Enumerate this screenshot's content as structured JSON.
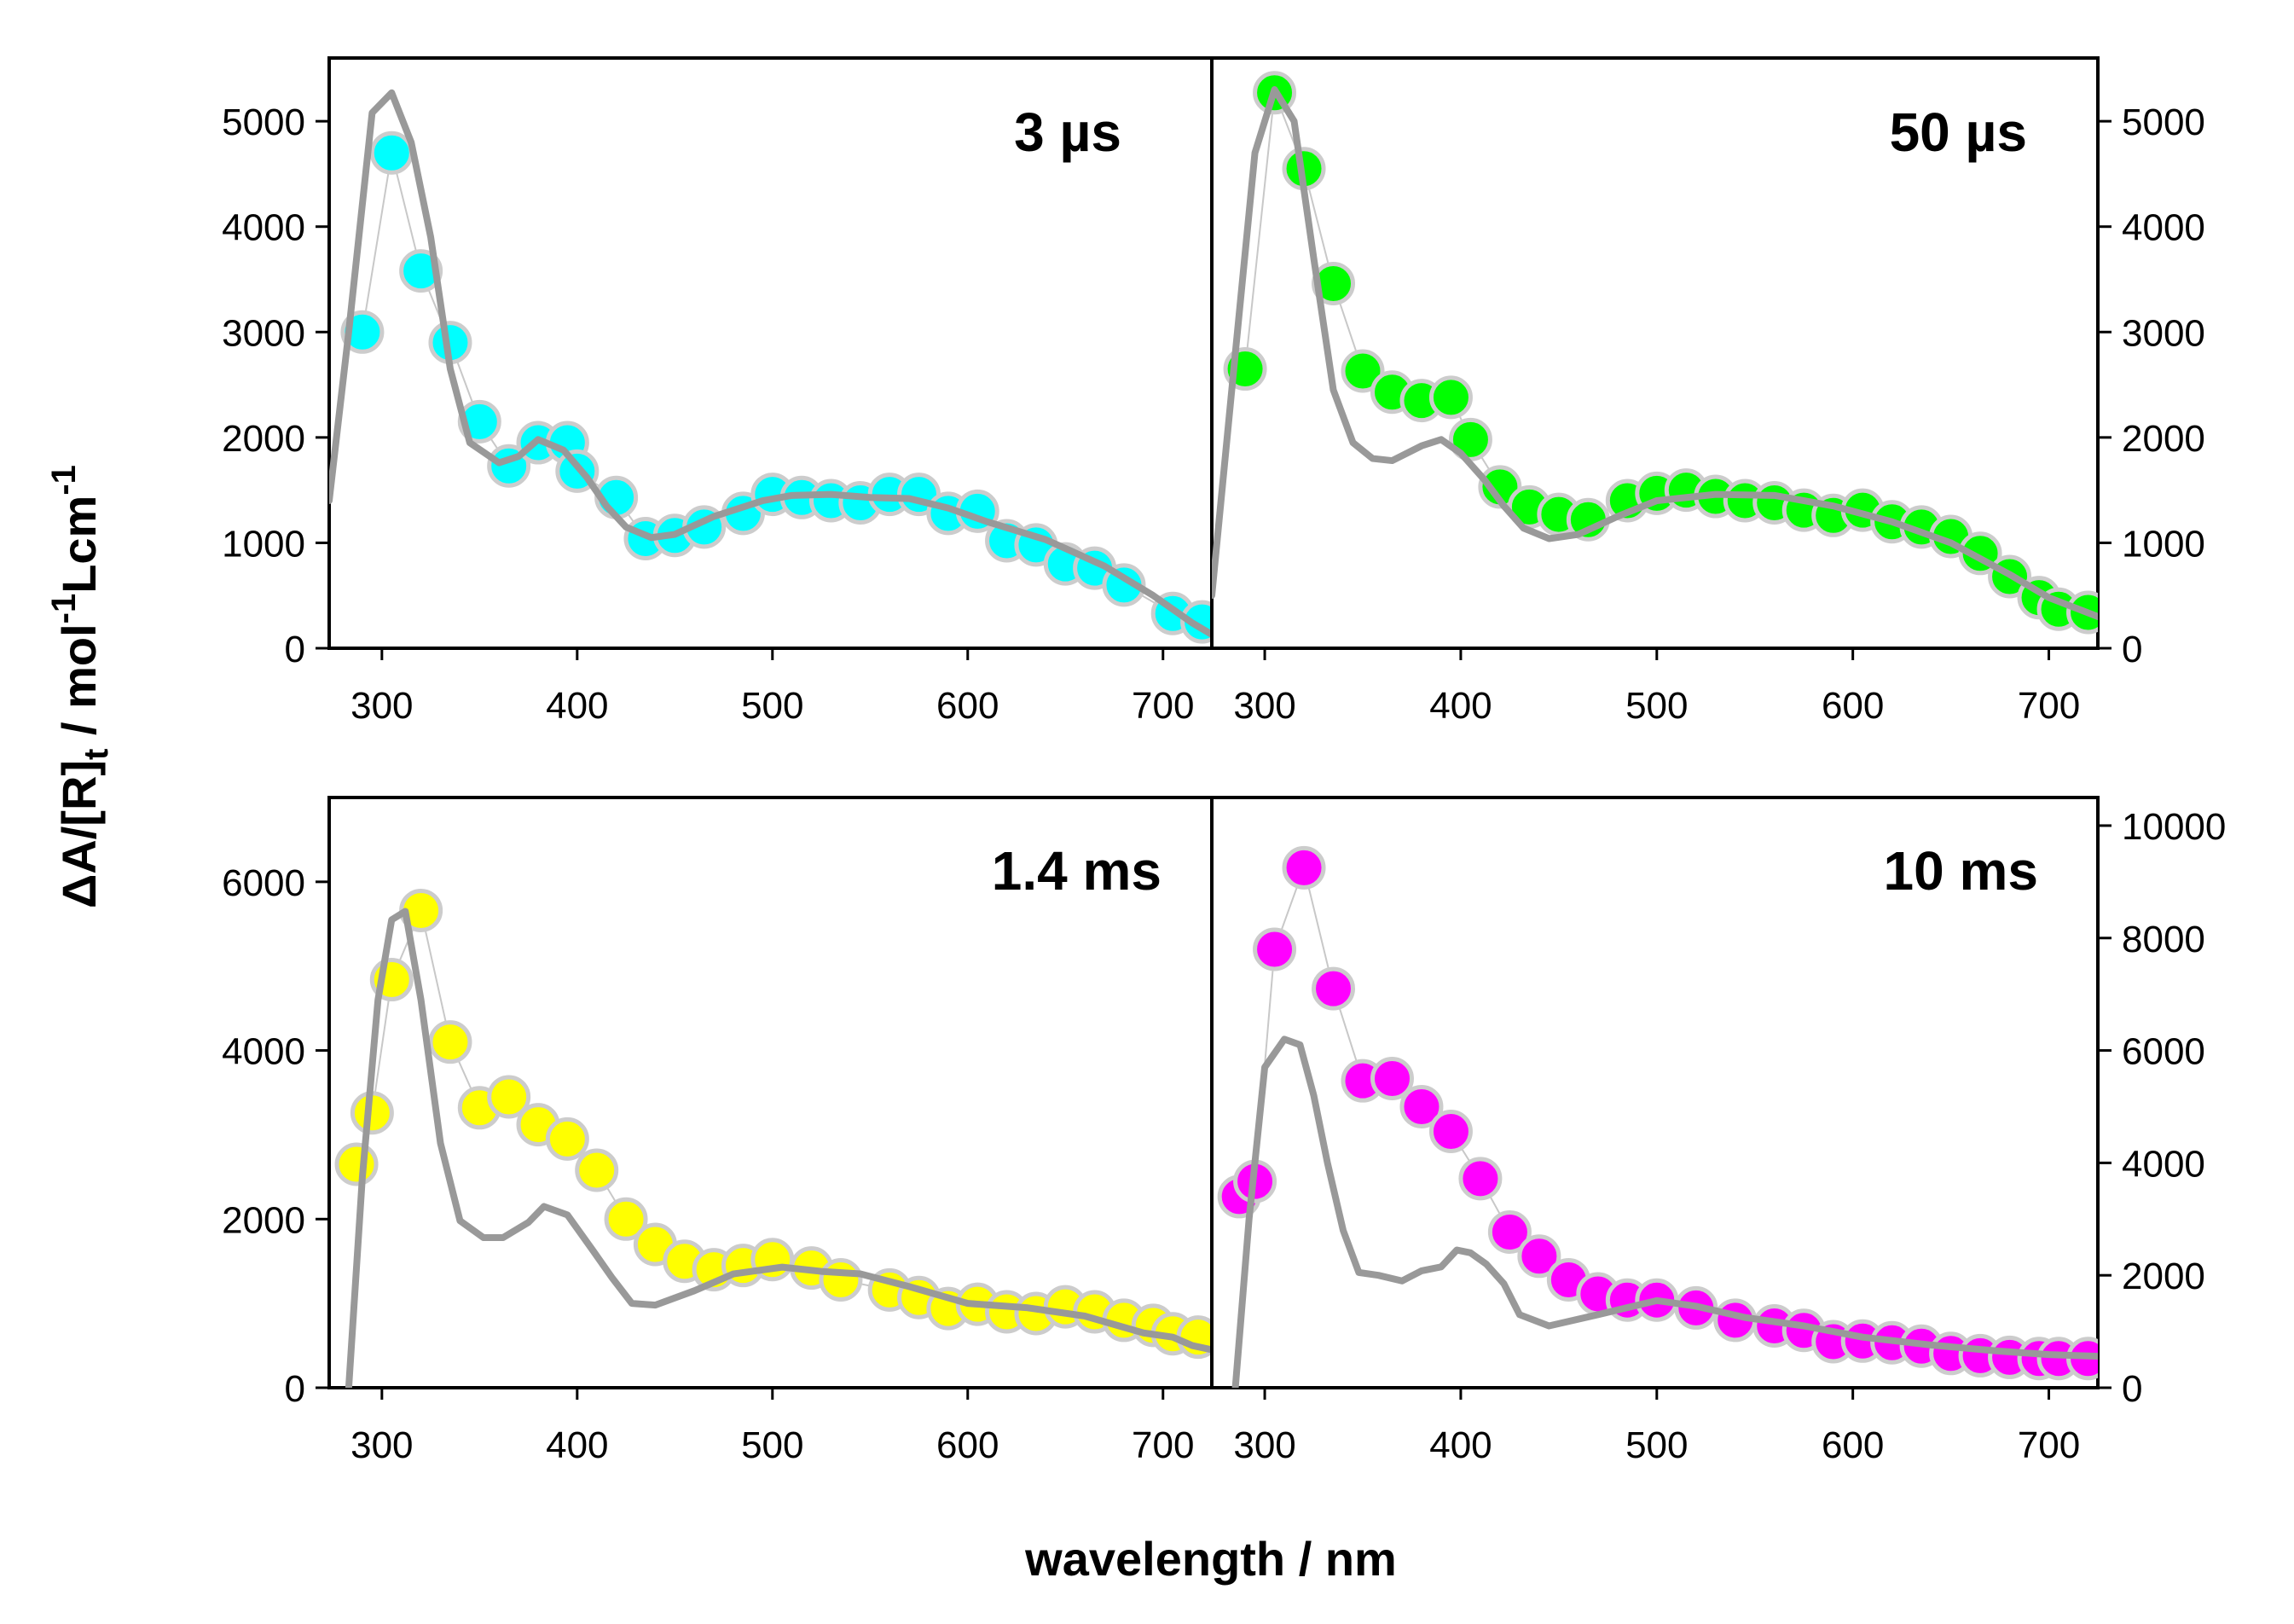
{
  "chart_data": {
    "type": "scatter",
    "xlabel": "wavelength / nm",
    "ylabel": "ΔA/[R]t / mol-1Lcm-1",
    "ylabel_parts": {
      "main": "ΔA/[R]",
      "sub1": "t",
      "unit": " / mol",
      "sup1": "-1",
      "unit2": "Lcm",
      "sup2": "-1"
    },
    "xlim": [
      273,
      725
    ],
    "xticks": [
      "300",
      "400",
      "500",
      "600",
      "700"
    ],
    "colors": {
      "cyan": "#00ffff",
      "green": "#00ff00",
      "yellow": "#ffff00",
      "magenta": "#ff00ff",
      "reference_line": "#999999",
      "marker_edge": "#cccccc",
      "connector": "#c8c8c8"
    },
    "panels": [
      {
        "label": "3 µs",
        "ylim": [
          0,
          5600
        ],
        "yticks": [
          "0",
          "1000",
          "2000",
          "3000",
          "4000",
          "5000"
        ],
        "y_axis_side": "left",
        "marker_color": "#00ffff",
        "points": [
          [
            290,
            3000
          ],
          [
            305,
            4700
          ],
          [
            320,
            3580
          ],
          [
            335,
            2900
          ],
          [
            350,
            2150
          ],
          [
            365,
            1730
          ],
          [
            380,
            1950
          ],
          [
            395,
            1950
          ],
          [
            400,
            1680
          ],
          [
            420,
            1430
          ],
          [
            435,
            1040
          ],
          [
            450,
            1070
          ],
          [
            465,
            1150
          ],
          [
            485,
            1280
          ],
          [
            500,
            1460
          ],
          [
            515,
            1430
          ],
          [
            530,
            1400
          ],
          [
            545,
            1380
          ],
          [
            560,
            1460
          ],
          [
            575,
            1460
          ],
          [
            590,
            1280
          ],
          [
            605,
            1300
          ],
          [
            620,
            1020
          ],
          [
            635,
            980
          ],
          [
            650,
            800
          ],
          [
            665,
            760
          ],
          [
            680,
            600
          ],
          [
            705,
            330
          ],
          [
            720,
            250
          ]
        ],
        "reference_line": [
          [
            273,
            1400
          ],
          [
            283,
            3000
          ],
          [
            295,
            5080
          ],
          [
            305,
            5270
          ],
          [
            315,
            4800
          ],
          [
            325,
            3900
          ],
          [
            335,
            2650
          ],
          [
            345,
            1950
          ],
          [
            360,
            1760
          ],
          [
            370,
            1820
          ],
          [
            380,
            1980
          ],
          [
            393,
            1880
          ],
          [
            405,
            1620
          ],
          [
            415,
            1350
          ],
          [
            425,
            1150
          ],
          [
            438,
            1050
          ],
          [
            450,
            1080
          ],
          [
            470,
            1250
          ],
          [
            495,
            1400
          ],
          [
            510,
            1450
          ],
          [
            530,
            1460
          ],
          [
            550,
            1430
          ],
          [
            570,
            1420
          ],
          [
            590,
            1330
          ],
          [
            610,
            1200
          ],
          [
            640,
            1030
          ],
          [
            670,
            780
          ],
          [
            695,
            500
          ],
          [
            715,
            240
          ],
          [
            725,
            130
          ]
        ]
      },
      {
        "label": "50 µs",
        "ylim": [
          0,
          5600
        ],
        "yticks": [
          "0",
          "1000",
          "2000",
          "3000",
          "4000",
          "5000"
        ],
        "y_axis_side": "right",
        "marker_color": "#00ff00",
        "points": [
          [
            290,
            2650
          ],
          [
            305,
            5270
          ],
          [
            320,
            4550
          ],
          [
            335,
            3460
          ],
          [
            350,
            2630
          ],
          [
            365,
            2430
          ],
          [
            380,
            2350
          ],
          [
            395,
            2380
          ],
          [
            405,
            1980
          ],
          [
            420,
            1530
          ],
          [
            435,
            1340
          ],
          [
            450,
            1270
          ],
          [
            465,
            1220
          ],
          [
            485,
            1400
          ],
          [
            500,
            1470
          ],
          [
            515,
            1500
          ],
          [
            530,
            1440
          ],
          [
            545,
            1400
          ],
          [
            560,
            1380
          ],
          [
            575,
            1310
          ],
          [
            590,
            1260
          ],
          [
            605,
            1310
          ],
          [
            620,
            1200
          ],
          [
            635,
            1150
          ],
          [
            650,
            1060
          ],
          [
            665,
            900
          ],
          [
            680,
            680
          ],
          [
            695,
            480
          ],
          [
            705,
            370
          ],
          [
            720,
            340
          ]
        ],
        "reference_line": [
          [
            273,
            500
          ],
          [
            285,
            2800
          ],
          [
            295,
            4700
          ],
          [
            305,
            5300
          ],
          [
            315,
            5000
          ],
          [
            325,
            3700
          ],
          [
            335,
            2450
          ],
          [
            345,
            1950
          ],
          [
            355,
            1800
          ],
          [
            365,
            1780
          ],
          [
            380,
            1920
          ],
          [
            390,
            1980
          ],
          [
            400,
            1850
          ],
          [
            412,
            1600
          ],
          [
            422,
            1350
          ],
          [
            432,
            1140
          ],
          [
            445,
            1040
          ],
          [
            460,
            1080
          ],
          [
            480,
            1250
          ],
          [
            500,
            1400
          ],
          [
            530,
            1460
          ],
          [
            560,
            1450
          ],
          [
            590,
            1350
          ],
          [
            620,
            1200
          ],
          [
            650,
            1000
          ],
          [
            680,
            700
          ],
          [
            700,
            480
          ],
          [
            725,
            300
          ]
        ]
      },
      {
        "label": "1.4 ms",
        "ylim": [
          0,
          7000
        ],
        "yticks": [
          "0",
          "2000",
          "4000",
          "6000"
        ],
        "y_axis_side": "left",
        "marker_color": "#ffff00",
        "points": [
          [
            287,
            2650
          ],
          [
            295,
            3260
          ],
          [
            305,
            4840
          ],
          [
            320,
            5660
          ],
          [
            335,
            4100
          ],
          [
            350,
            3320
          ],
          [
            365,
            3450
          ],
          [
            380,
            3120
          ],
          [
            395,
            2950
          ],
          [
            410,
            2580
          ],
          [
            425,
            2000
          ],
          [
            440,
            1700
          ],
          [
            455,
            1500
          ],
          [
            470,
            1400
          ],
          [
            485,
            1450
          ],
          [
            500,
            1520
          ],
          [
            520,
            1420
          ],
          [
            535,
            1280
          ],
          [
            560,
            1160
          ],
          [
            575,
            1070
          ],
          [
            590,
            940
          ],
          [
            605,
            990
          ],
          [
            620,
            900
          ],
          [
            635,
            880
          ],
          [
            650,
            960
          ],
          [
            665,
            900
          ],
          [
            680,
            800
          ],
          [
            695,
            740
          ],
          [
            705,
            640
          ],
          [
            718,
            600
          ]
        ],
        "reference_line": [
          [
            283,
            0
          ],
          [
            290,
            2500
          ],
          [
            298,
            4600
          ],
          [
            305,
            5550
          ],
          [
            312,
            5650
          ],
          [
            320,
            4600
          ],
          [
            330,
            2900
          ],
          [
            340,
            1980
          ],
          [
            352,
            1780
          ],
          [
            362,
            1780
          ],
          [
            375,
            1960
          ],
          [
            383,
            2150
          ],
          [
            395,
            2050
          ],
          [
            408,
            1630
          ],
          [
            418,
            1300
          ],
          [
            428,
            1000
          ],
          [
            440,
            980
          ],
          [
            460,
            1150
          ],
          [
            480,
            1350
          ],
          [
            505,
            1430
          ],
          [
            525,
            1380
          ],
          [
            545,
            1350
          ],
          [
            570,
            1200
          ],
          [
            600,
            1000
          ],
          [
            630,
            950
          ],
          [
            660,
            850
          ],
          [
            690,
            650
          ],
          [
            705,
            600
          ],
          [
            715,
            500
          ],
          [
            725,
            450
          ]
        ]
      },
      {
        "label": "10 ms",
        "ylim": [
          0,
          10500
        ],
        "yticks": [
          "0",
          "2000",
          "4000",
          "6000",
          "8000",
          "10000"
        ],
        "y_axis_side": "right",
        "marker_color": "#ff00ff",
        "points": [
          [
            287,
            3400
          ],
          [
            295,
            3670
          ],
          [
            305,
            7800
          ],
          [
            320,
            9250
          ],
          [
            335,
            7100
          ],
          [
            350,
            5460
          ],
          [
            365,
            5500
          ],
          [
            380,
            5000
          ],
          [
            395,
            4560
          ],
          [
            410,
            3720
          ],
          [
            425,
            2770
          ],
          [
            440,
            2340
          ],
          [
            455,
            1920
          ],
          [
            470,
            1670
          ],
          [
            485,
            1560
          ],
          [
            500,
            1560
          ],
          [
            520,
            1420
          ],
          [
            540,
            1200
          ],
          [
            560,
            1100
          ],
          [
            575,
            1020
          ],
          [
            590,
            820
          ],
          [
            605,
            830
          ],
          [
            620,
            800
          ],
          [
            635,
            740
          ],
          [
            650,
            610
          ],
          [
            665,
            570
          ],
          [
            680,
            540
          ],
          [
            695,
            520
          ],
          [
            705,
            520
          ],
          [
            720,
            520
          ]
        ],
        "reference_line": [
          [
            285,
            0
          ],
          [
            292,
            3000
          ],
          [
            300,
            5700
          ],
          [
            310,
            6200
          ],
          [
            318,
            6100
          ],
          [
            325,
            5200
          ],
          [
            332,
            4000
          ],
          [
            340,
            2800
          ],
          [
            348,
            2050
          ],
          [
            358,
            2000
          ],
          [
            370,
            1900
          ],
          [
            380,
            2080
          ],
          [
            390,
            2150
          ],
          [
            398,
            2450
          ],
          [
            405,
            2400
          ],
          [
            413,
            2200
          ],
          [
            422,
            1850
          ],
          [
            430,
            1300
          ],
          [
            445,
            1100
          ],
          [
            470,
            1300
          ],
          [
            500,
            1550
          ],
          [
            520,
            1450
          ],
          [
            545,
            1250
          ],
          [
            575,
            1100
          ],
          [
            605,
            900
          ],
          [
            640,
            760
          ],
          [
            675,
            650
          ],
          [
            700,
            590
          ],
          [
            725,
            560
          ]
        ]
      }
    ]
  }
}
